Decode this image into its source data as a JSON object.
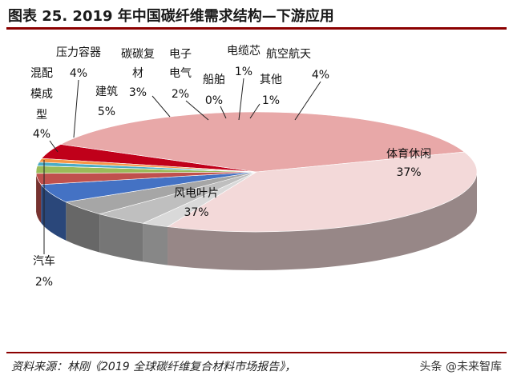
{
  "title": "图表 25. 2019 年中国碳纤维需求结构—下游应用",
  "source": "资料来源：林刚《2019 全球碳纤维复合材料市场报告》，",
  "watermark": "头条 @未来智库",
  "chart_data": {
    "type": "pie",
    "unit": "%",
    "slices": [
      {
        "name": "航空航天",
        "value": 4,
        "label": "4%",
        "color": "#c0001a"
      },
      {
        "name": "体育休闲",
        "value": 37,
        "label": "37%",
        "color": "#e8a8a8"
      },
      {
        "name": "风电叶片",
        "value": 37,
        "label": "37%",
        "color": "#f3d9d9"
      },
      {
        "name": "汽车",
        "value": 2,
        "label": "2%",
        "color": "#d9d9d9"
      },
      {
        "name": "混配模成型",
        "value": 4,
        "label": "4%",
        "color": "#bfbfbf"
      },
      {
        "name": "压力容器",
        "value": 4,
        "label": "4%",
        "color": "#a6a6a6"
      },
      {
        "name": "建筑",
        "value": 5,
        "label": "5%",
        "color": "#4472c4"
      },
      {
        "name": "碳碳复材",
        "value": 3,
        "label": "3%",
        "color": "#c0504d"
      },
      {
        "name": "电子电气",
        "value": 2,
        "label": "2%",
        "color": "#9bbb59"
      },
      {
        "name": "船舶",
        "value": 0,
        "label": "0%",
        "color": "#8064a2"
      },
      {
        "name": "电缆芯",
        "value": 1,
        "label": "1%",
        "color": "#4bacc6"
      },
      {
        "name": "其他",
        "value": 1,
        "label": "1%",
        "color": "#f79646"
      }
    ]
  }
}
